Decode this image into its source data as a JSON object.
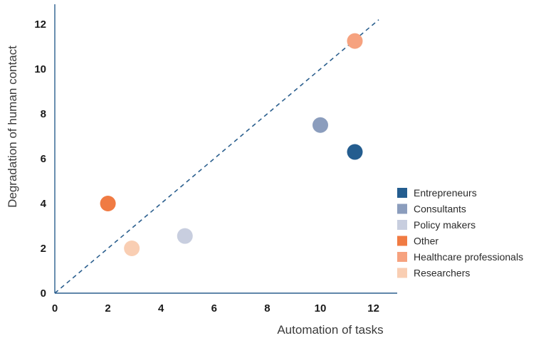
{
  "chart_data": {
    "type": "scatter",
    "title": "",
    "xlabel": "Automation of tasks",
    "ylabel": "Degradation of human contact",
    "xlim": [
      0,
      13
    ],
    "ylim": [
      0,
      13
    ],
    "xticks": [
      0,
      2,
      4,
      6,
      8,
      10,
      12
    ],
    "yticks": [
      0,
      2,
      4,
      6,
      8,
      10,
      12
    ],
    "grid": false,
    "legend_position": "right",
    "reference_line": {
      "style": "dashed",
      "from": [
        0,
        0
      ],
      "to": [
        12.2,
        12.2
      ],
      "color": "#2b5f8e"
    },
    "series": [
      {
        "name": "Entrepreneurs",
        "color": "#245d8f",
        "points": [
          [
            11.3,
            6.3
          ]
        ]
      },
      {
        "name": "Consultants",
        "color": "#8b9dbd",
        "points": [
          [
            10.0,
            7.5
          ]
        ]
      },
      {
        "name": "Policy makers",
        "color": "#c8cedf",
        "points": [
          [
            4.9,
            2.55
          ]
        ]
      },
      {
        "name": "Other",
        "color": "#f07b43",
        "points": [
          [
            2.0,
            4.0
          ]
        ]
      },
      {
        "name": "Healthcare professionals",
        "color": "#f6a27f",
        "points": [
          [
            11.3,
            11.25
          ]
        ]
      },
      {
        "name": "Researchers",
        "color": "#f9ceb3",
        "points": [
          [
            2.9,
            2.0
          ]
        ]
      }
    ]
  }
}
